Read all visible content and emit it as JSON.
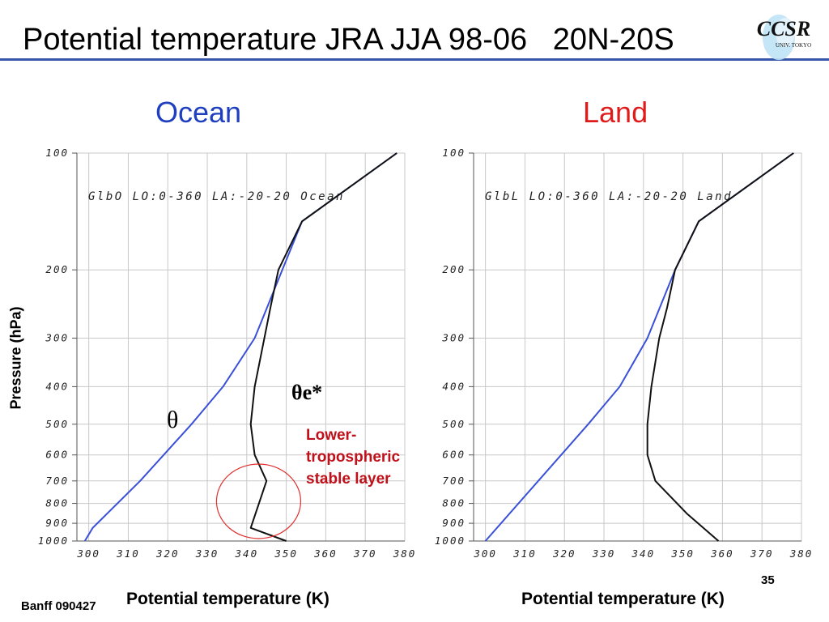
{
  "slide": {
    "title": "Potential temperature JRA JJA 98-06   20N-20S",
    "footer": "Banff 090427",
    "page_number": "35",
    "logo": {
      "main": "CCSR",
      "sub": "UNIV. TOKYO"
    }
  },
  "colors": {
    "theta": "#3a50d8",
    "theta_es": "#111111",
    "ocean_heading": "#1f3fbf",
    "land_heading": "#e01b1b",
    "annotation": "#c0101a",
    "rule": "#3a56a8"
  },
  "chart_data": [
    {
      "type": "line",
      "heading": "Ocean",
      "inner_label": "GlbO  LO:0-360  LA:-20-20  Ocean",
      "xlabel": "Potential temperature (K)",
      "ylabel": "Pressure (hPa)",
      "xlim": [
        297,
        380
      ],
      "ylim": [
        1000,
        100
      ],
      "yscale": "log",
      "xticks": [
        300,
        310,
        320,
        330,
        340,
        350,
        360,
        370,
        380
      ],
      "yticks": [
        100,
        200,
        300,
        400,
        500,
        600,
        700,
        800,
        900,
        1000
      ],
      "grid": true,
      "series": [
        {
          "name": "θ",
          "color_key": "theta",
          "x": [
            299,
            301,
            313,
            326,
            334,
            342,
            349,
            354,
            378
          ],
          "y": [
            1000,
            925,
            700,
            500,
            400,
            300,
            200,
            150,
            100
          ]
        },
        {
          "name": "θe*",
          "color_key": "theta_es",
          "x": [
            350,
            341,
            345,
            342,
            341,
            342,
            346,
            348,
            354,
            378
          ],
          "y": [
            1000,
            925,
            700,
            600,
            500,
            400,
            250,
            200,
            150,
            100
          ]
        }
      ],
      "annotations": {
        "theta_label": "θ",
        "theta_es_label": "θe*",
        "note_lines": [
          "Lower-",
          "tropospheric",
          "stable layer"
        ]
      }
    },
    {
      "type": "line",
      "heading": "Land",
      "inner_label": "GlbL  LO:0-360  LA:-20-20  Land",
      "xlabel": "Potential temperature (K)",
      "ylabel": "",
      "xlim": [
        297,
        380
      ],
      "ylim": [
        1000,
        100
      ],
      "yscale": "log",
      "xticks": [
        300,
        310,
        320,
        330,
        340,
        350,
        360,
        370,
        380
      ],
      "yticks": [
        100,
        200,
        300,
        400,
        500,
        600,
        700,
        800,
        900,
        1000
      ],
      "grid": true,
      "series": [
        {
          "name": "θ",
          "color_key": "theta",
          "x": [
            300,
            326,
            334,
            341,
            348,
            354,
            378
          ],
          "y": [
            1000,
            500,
            400,
            300,
            200,
            150,
            100
          ]
        },
        {
          "name": "θe*",
          "color_key": "theta_es",
          "x": [
            359,
            351,
            343,
            341,
            341,
            342,
            344,
            346,
            348,
            354,
            378
          ],
          "y": [
            1000,
            850,
            700,
            600,
            500,
            400,
            300,
            250,
            200,
            150,
            100
          ]
        }
      ]
    }
  ]
}
